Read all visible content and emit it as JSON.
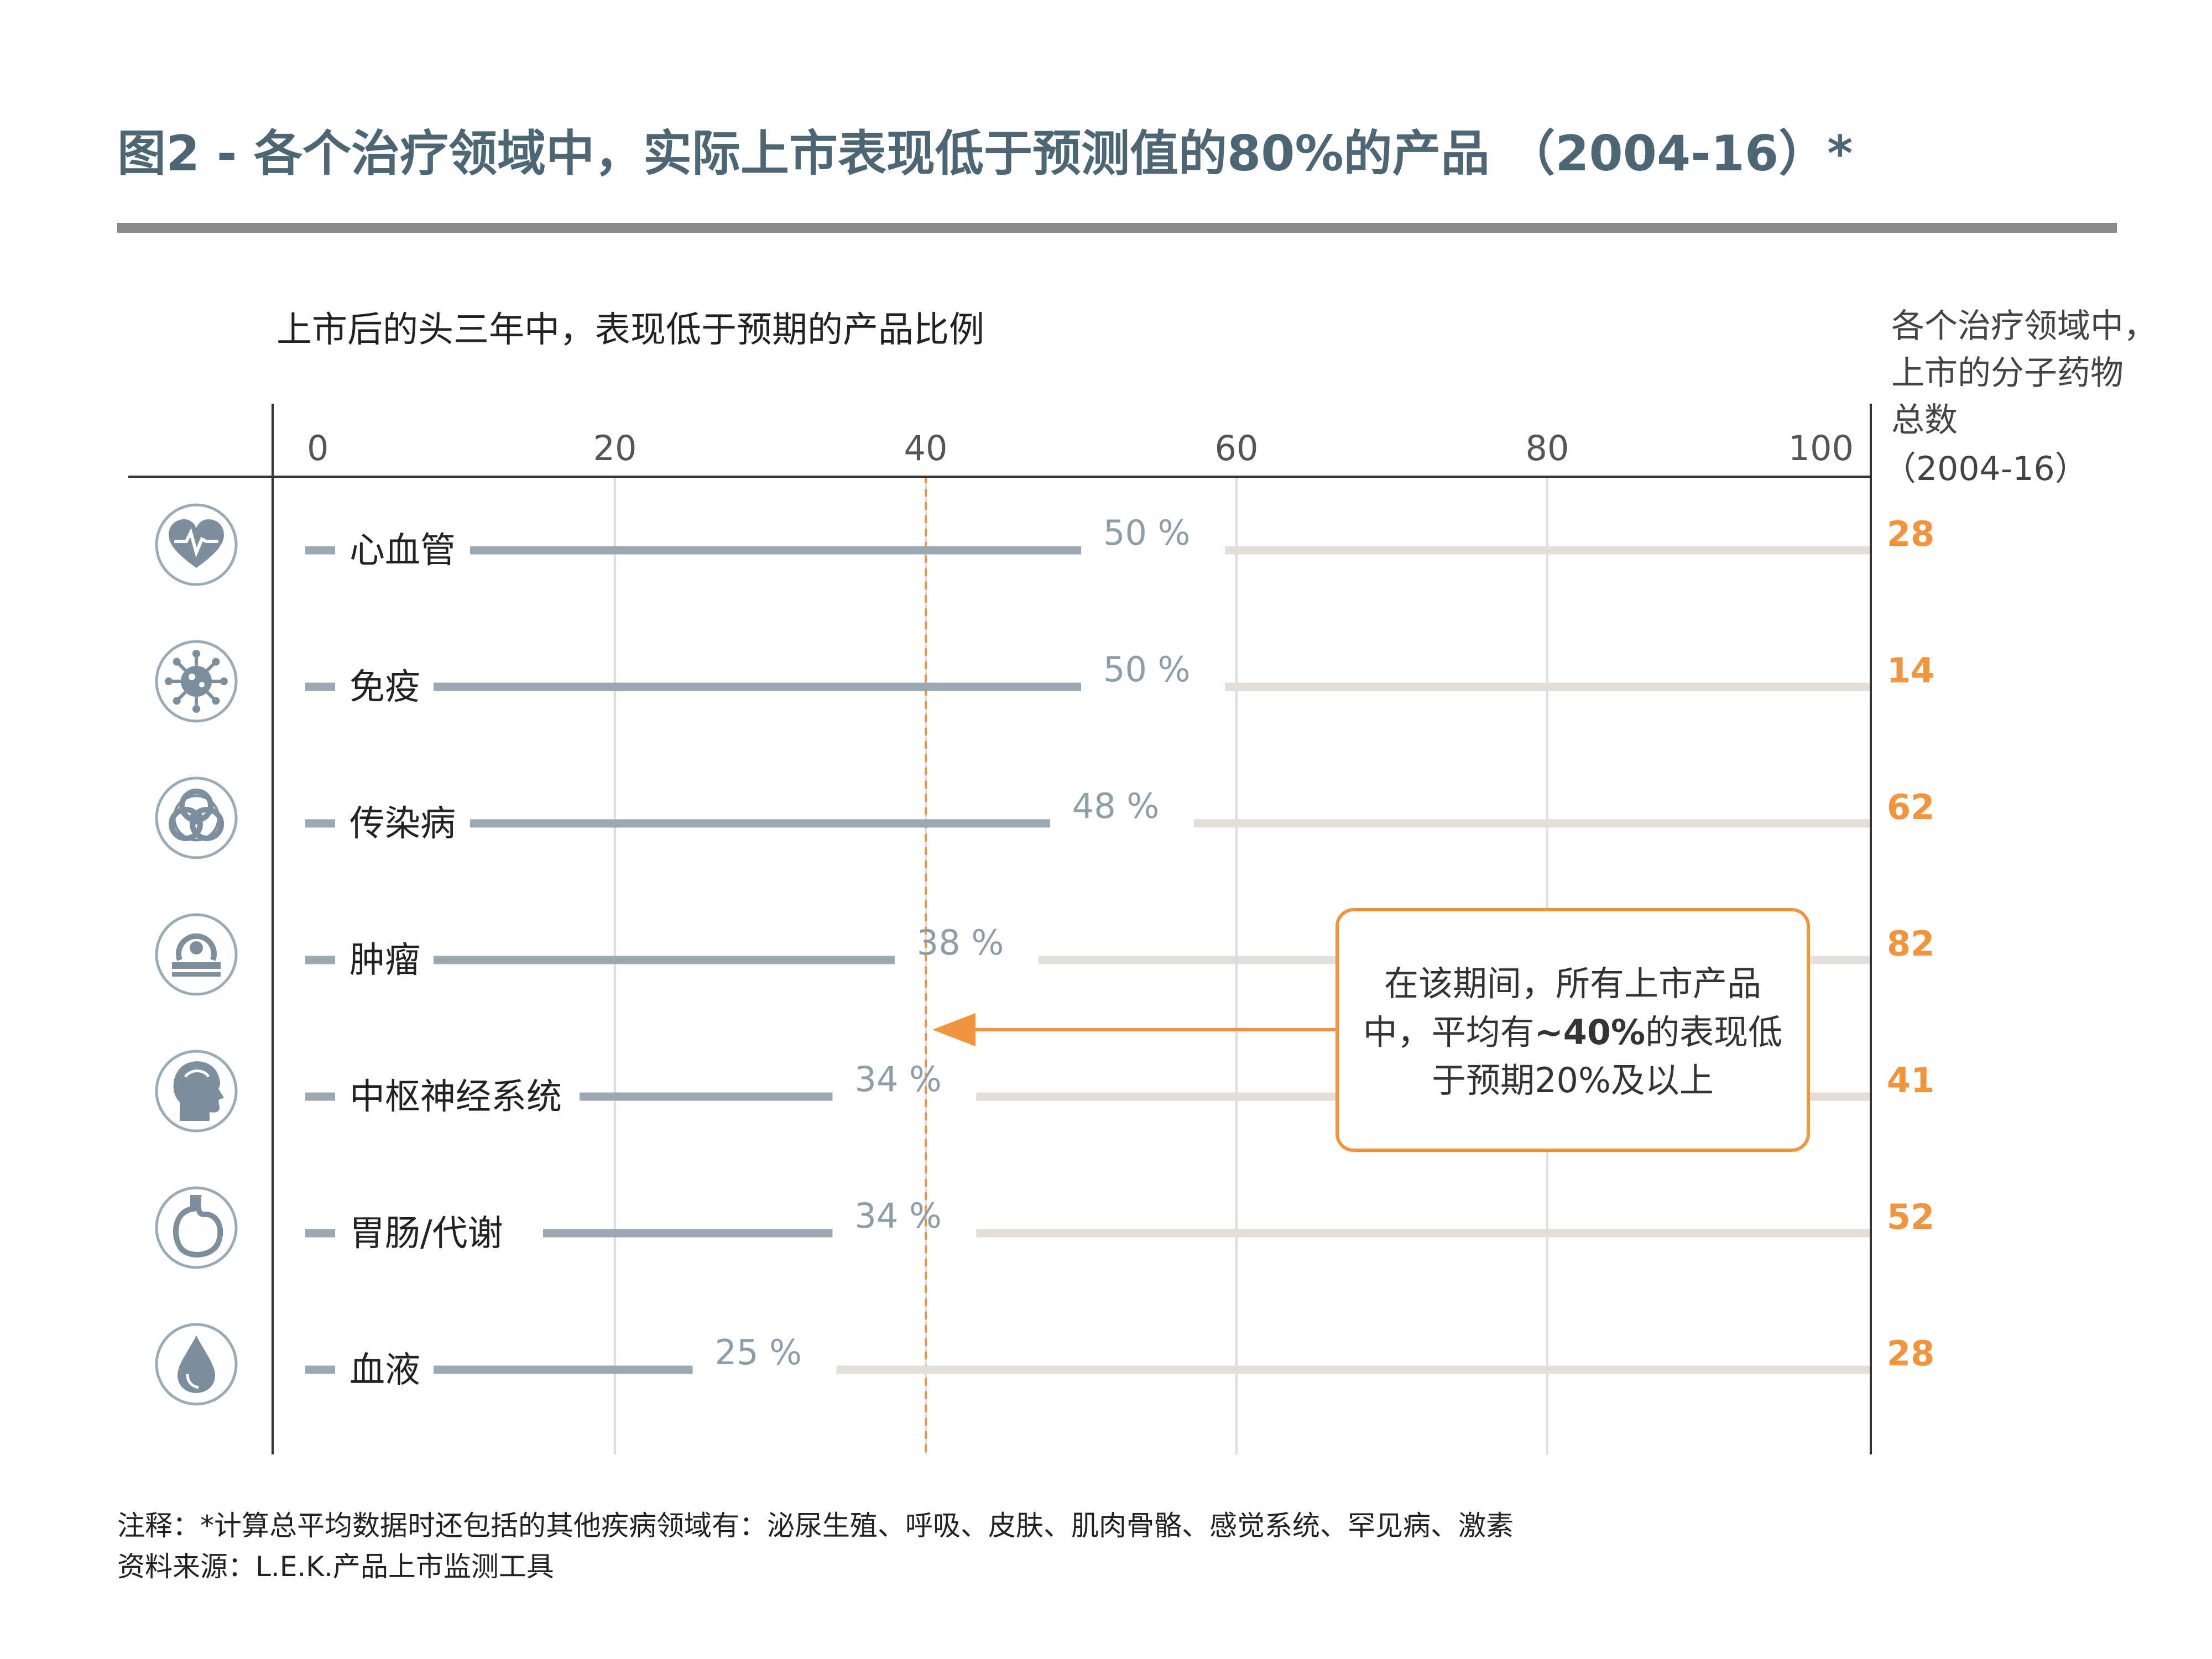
{
  "title": "图2 - 各个治疗领域中，实际上市表现低于预测值的80%的产品 （2004-16）*",
  "subtitle": "上市后的头三年中，表现低于预期的产品比例",
  "right_header": [
    "各个治疗领域中，",
    "上市的分子药物",
    "总数",
    "（2004-16）"
  ],
  "annotation": {
    "line1": "在该期间，所有上市产品",
    "line2_pre": "中，平均有",
    "line2_bold": "~40%",
    "line2_post": "的表现低",
    "line3": "于预期20%及以上",
    "avg_value": 40
  },
  "footnote": {
    "note": "注释：*计算总平均数据时还包括的其他疾病领域有：泌尿生殖、呼吸、皮肤、肌肉骨骼、感觉系统、罕见病、激素",
    "source": "资料来源：L.E.K.产品上市监测工具"
  },
  "colors": {
    "title": "#4d6674",
    "bar": "#9aa8b2",
    "track": "#e4ded8",
    "accent": "#f0943e",
    "axis": "#333333",
    "grid": "#dddddd",
    "icon": "#7d8f9c"
  },
  "chart_data": {
    "type": "bar",
    "orientation": "horizontal",
    "categories": [
      "心血管",
      "免疫",
      "传染病",
      "肿瘤",
      "中枢神经系统",
      "胃肠/代谢",
      "血液"
    ],
    "icons": [
      "heart-icon",
      "virus-icon",
      "biohazard-icon",
      "scanner-icon",
      "head-icon",
      "stomach-icon",
      "blood-drop-icon"
    ],
    "values": [
      50,
      50,
      48,
      38,
      34,
      34,
      25
    ],
    "value_labels": [
      "50 %",
      "50 %",
      "48 %",
      "38 %",
      "34 %",
      "34 %",
      "25 %"
    ],
    "totals": [
      28,
      14,
      62,
      82,
      41,
      52,
      28
    ],
    "xlim": [
      0,
      100
    ],
    "xticks": [
      0,
      20,
      40,
      60,
      80,
      100
    ],
    "xtick_labels": [
      "0",
      "20",
      "40",
      "60",
      "80",
      "100"
    ],
    "grid": true,
    "reference_line": 40
  }
}
